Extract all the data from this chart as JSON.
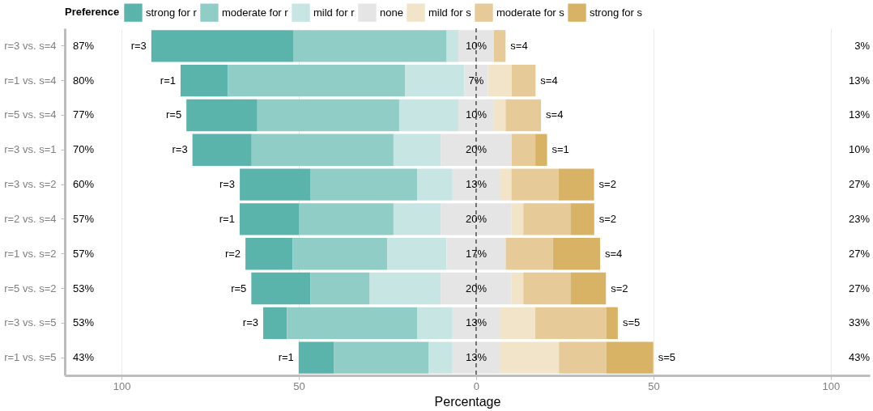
{
  "chart_data": {
    "type": "bar",
    "orientation": "horizontal",
    "xlabel": "Percentage",
    "legend_title": "Preference",
    "legend": "top",
    "categories": [
      "r=3 vs. s=4",
      "r=1 vs. s=4",
      "r=5 vs. s=4",
      "r=3 vs. s=1",
      "r=3 vs. s=2",
      "r=2 vs. s=4",
      "r=1 vs. s=2",
      "r=5 vs. s=2",
      "r=3 vs. s=5",
      "r=1 vs. s=5"
    ],
    "series": [
      {
        "name": "strong for r",
        "color": "#5ab4ac",
        "values": [
          40,
          13.3,
          20,
          16.7,
          20,
          16.7,
          13.3,
          16.7,
          6.7,
          10
        ],
        "base": [
          -91.6,
          -83.35,
          -81.7,
          -80,
          -66.65,
          -66.7,
          -65.05,
          -63.4,
          -60.05,
          -50.05
        ]
      },
      {
        "name": "moderate for r",
        "color": "#90cdc7",
        "values": [
          43.3,
          50,
          40,
          40,
          30,
          26.7,
          26.7,
          16.7,
          36.7,
          26.7
        ],
        "base": [
          -51.6,
          -70.05,
          -61.7,
          -63.3,
          -46.65,
          -50,
          -51.75,
          -46.7,
          -53.35,
          -40.05
        ]
      },
      {
        "name": "mild for r",
        "color": "#c7e5e2",
        "values": [
          3.3,
          16.7,
          16.7,
          13.3,
          10,
          13.3,
          16.7,
          20,
          10,
          6.7
        ],
        "base": [
          -8.3,
          -20.05,
          -21.7,
          -23.3,
          -16.65,
          -23.3,
          -25.05,
          -30,
          -16.65,
          -13.35
        ]
      },
      {
        "name": "none",
        "color": "#e5e5e5",
        "values": [
          10,
          6.7,
          10,
          20,
          13.3,
          20,
          16.7,
          20,
          13.3,
          13.3
        ],
        "base": [
          -5,
          -3.35,
          -5,
          -10,
          -6.65,
          -10,
          -8.35,
          -10,
          -6.65,
          -6.65
        ],
        "value_labels": [
          "10%",
          "7%",
          "10%",
          "20%",
          "13%",
          "20%",
          "17%",
          "20%",
          "13%",
          "13%"
        ]
      },
      {
        "name": "mild for s",
        "color": "#f2e4c9",
        "values": [
          0,
          6.7,
          3.3,
          0,
          3.3,
          3.3,
          0,
          3.3,
          10,
          16.7
        ],
        "base": [
          null,
          3.35,
          5,
          null,
          6.65,
          10,
          null,
          10,
          6.65,
          6.65
        ]
      },
      {
        "name": "moderate for s",
        "color": "#e6cb99",
        "values": [
          3.3,
          6.7,
          10,
          6.7,
          13.3,
          13.3,
          13.3,
          13.3,
          20,
          13.3
        ],
        "base": [
          5,
          10.05,
          8.3,
          10,
          9.95,
          13.3,
          8.35,
          13.3,
          16.65,
          23.35
        ]
      },
      {
        "name": "strong for s",
        "color": "#d8b365",
        "values": [
          0,
          0,
          0,
          3.3,
          10,
          6.7,
          13.3,
          10,
          3.3,
          13.3
        ],
        "base": [
          null,
          null,
          null,
          16.7,
          23.25,
          26.6,
          21.65,
          26.6,
          36.65,
          36.65
        ]
      }
    ],
    "xlim": [
      -116,
      111
    ],
    "xticks": [
      {
        "value": -100,
        "label": "100"
      },
      {
        "value": -50,
        "label": "50"
      },
      0,
      50,
      100
    ],
    "grid": "x",
    "ref_lines": [
      {
        "axis": "x",
        "value": 0,
        "color": "#000000",
        "line_style": "dashed"
      }
    ],
    "annotations": [
      "87%",
      "80%",
      "77%",
      "70%",
      "60%",
      "57%",
      "57%",
      "53%",
      "53%",
      "43%",
      "3%",
      "13%",
      "13%",
      "10%",
      "27%",
      "23%",
      "27%",
      "27%",
      "33%",
      "43%",
      {
        "text": "r=3",
        "x": -91.6,
        "y": "r=3 vs. s=4"
      },
      {
        "text": "r=1",
        "x": -83.35,
        "y": "r=1 vs. s=4"
      },
      {
        "text": "r=5",
        "x": -81.7,
        "y": "r=5 vs. s=4"
      },
      {
        "text": "r=3",
        "x": -80,
        "y": "r=3 vs. s=1"
      },
      {
        "text": "r=3",
        "x": -66.65,
        "y": "r=3 vs. s=2"
      },
      {
        "text": "r=1",
        "x": -66.7,
        "y": "r=2 vs. s=4"
      },
      {
        "text": "r=2",
        "x": -65.05,
        "y": "r=1 vs. s=2"
      },
      {
        "text": "r=5",
        "x": -63.4,
        "y": "r=5 vs. s=2"
      },
      {
        "text": "r=3",
        "x": -60.05,
        "y": "r=3 vs. s=5"
      },
      {
        "text": "r=1",
        "x": -50.05,
        "y": "r=1 vs. s=5"
      },
      {
        "text": "s=4",
        "x": 8.3,
        "y": "r=3 vs. s=4"
      },
      {
        "text": "s=4",
        "x": 16.75,
        "y": "r=1 vs. s=4"
      },
      {
        "text": "s=4",
        "x": 18.3,
        "y": "r=5 vs. s=4"
      },
      {
        "text": "s=1",
        "x": 20,
        "y": "r=3 vs. s=1"
      },
      {
        "text": "s=2",
        "x": 33.25,
        "y": "r=3 vs. s=2"
      },
      {
        "text": "s=2",
        "x": 33.3,
        "y": "r=2 vs. s=4"
      },
      {
        "text": "s=4",
        "x": 34.95,
        "y": "r=1 vs. s=2"
      },
      {
        "text": "s=2",
        "x": 36.6,
        "y": "r=5 vs. s=2"
      },
      {
        "text": "s=5",
        "x": 39.95,
        "y": "r=3 vs. s=5"
      },
      {
        "text": "s=5",
        "x": 49.95,
        "y": "r=1 vs. s=5"
      }
    ]
  }
}
